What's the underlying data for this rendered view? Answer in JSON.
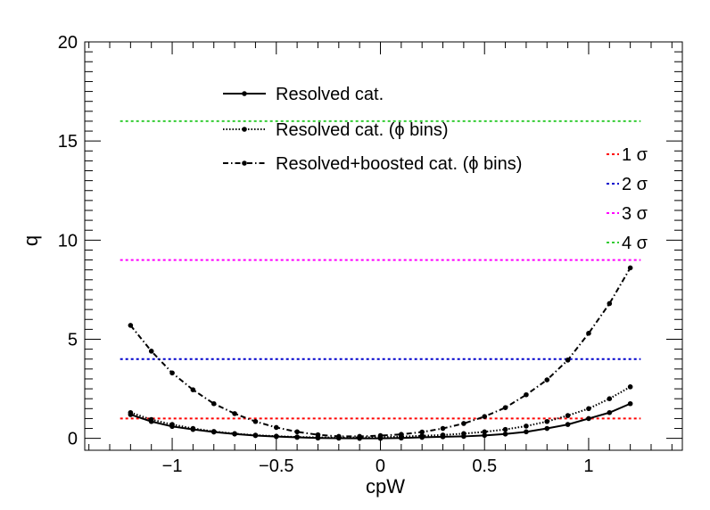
{
  "chart_data": {
    "type": "line",
    "xlabel": "cpW",
    "ylabel": "q",
    "xlim": [
      -1.42,
      1.45
    ],
    "ylim": [
      -0.6,
      20
    ],
    "x_ticks": [
      -1,
      -0.5,
      0,
      0.5,
      1
    ],
    "x_tick_labels": [
      "−1",
      "−0.5",
      "0",
      "0.5",
      "1"
    ],
    "y_ticks": [
      0,
      5,
      10,
      15,
      20
    ],
    "y_tick_labels": [
      "0",
      "5",
      "10",
      "15",
      "20"
    ],
    "grid": false,
    "legend_placement": "top-center",
    "x": [
      -1.2,
      -1.1,
      -1.0,
      -0.9,
      -0.8,
      -0.7,
      -0.6,
      -0.5,
      -0.4,
      -0.3,
      -0.2,
      -0.1,
      0.0,
      0.1,
      0.2,
      0.3,
      0.4,
      0.5,
      0.6,
      0.7,
      0.8,
      0.9,
      1.0,
      1.1,
      1.2
    ],
    "series": [
      {
        "name": "Resolved cat.",
        "style": "solid",
        "color": "#000000",
        "values": [
          1.2,
          0.85,
          0.6,
          0.45,
          0.32,
          0.22,
          0.14,
          0.09,
          0.05,
          0.02,
          0.01,
          0.0,
          0.0,
          0.02,
          0.05,
          0.08,
          0.1,
          0.15,
          0.22,
          0.33,
          0.5,
          0.7,
          1.0,
          1.3,
          1.75
        ]
      },
      {
        "name": "Resolved cat. (ϕ bins)",
        "style": "dotted",
        "color": "#000000",
        "values": [
          1.3,
          0.95,
          0.7,
          0.5,
          0.35,
          0.24,
          0.16,
          0.11,
          0.07,
          0.05,
          0.04,
          0.05,
          0.06,
          0.09,
          0.13,
          0.17,
          0.24,
          0.33,
          0.45,
          0.62,
          0.85,
          1.15,
          1.5,
          2.0,
          2.6
        ]
      },
      {
        "name": "Resolved+boosted cat. (ϕ bins)",
        "style": "dashdot",
        "color": "#000000",
        "values": [
          5.7,
          4.4,
          3.3,
          2.45,
          1.75,
          1.25,
          0.85,
          0.55,
          0.33,
          0.18,
          0.1,
          0.1,
          0.14,
          0.2,
          0.32,
          0.5,
          0.75,
          1.1,
          1.55,
          2.2,
          2.95,
          3.95,
          5.3,
          6.8,
          8.6
        ]
      }
    ],
    "reference_lines": [
      {
        "label": "1 σ",
        "value": 1,
        "color": "#ff0000"
      },
      {
        "label": "2 σ",
        "value": 4,
        "color": "#0000cc"
      },
      {
        "label": "3 σ",
        "value": 9,
        "color": "#ff00ff"
      },
      {
        "label": "4 σ",
        "value": 16,
        "color": "#33cc33"
      }
    ],
    "reference_line_xrange": [
      -1.25,
      1.25
    ]
  }
}
